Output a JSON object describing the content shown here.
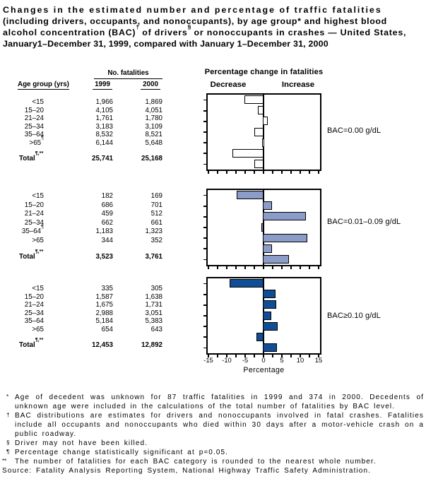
{
  "title": {
    "line1": "Changes in the estimated number and percentage of traffic fatalities",
    "line2": "(including drivers, occupants, and nonoccupants), by age group* and highest blood",
    "line3a": "alcohol concentration (BAC)",
    "line3_sup1": "†",
    "line3b": " of drivers",
    "line3_sup2": "§",
    "line3c": " or nonoccupants in crashes — United States,",
    "line4": "January1–December 31, 1999, compared with January 1–December 31, 2000"
  },
  "table_header": {
    "no_fatalities": "No. fatalities",
    "age_group": "Age group (yrs)",
    "year_1999": "1999",
    "year_2000": "2000"
  },
  "chart_header": {
    "title": "Percentage change in fatalities",
    "decrease_label": "Decrease",
    "increase_label": "Increase"
  },
  "axis": {
    "xlabel": "Percentage",
    "min": -15,
    "max": 15,
    "minor_step": 2.5,
    "major_ticks": [
      -15,
      -10,
      -5,
      0,
      5,
      10,
      15
    ],
    "tick_labels": [
      "-15",
      "-10",
      "-5",
      "0",
      "5",
      "10",
      "15"
    ]
  },
  "panels": [
    {
      "bac_label": "BAC=0.00 g/dL",
      "rows": [
        {
          "age": "<15",
          "sup": "",
          "f1999": "1,966",
          "f2000": "1,869"
        },
        {
          "age": "15–20",
          "sup": "",
          "f1999": "4,105",
          "f2000": "4,051"
        },
        {
          "age": "21–24",
          "sup": "",
          "f1999": "1,761",
          "f2000": "1,780"
        },
        {
          "age": "25–34",
          "sup": "",
          "f1999": "3,183",
          "f2000": "3,109"
        },
        {
          "age": "35–64",
          "sup": "",
          "f1999": "8,532",
          "f2000": "8,521"
        },
        {
          "age": ">65",
          "sup": "¶",
          "f1999": "6,144",
          "f2000": "5,648"
        }
      ],
      "total": {
        "label": "Total",
        "sup": "¶,**",
        "f1999": "25,741",
        "f2000": "25,168"
      }
    },
    {
      "bac_label": "BAC=0.01–0.09 g/dL",
      "rows": [
        {
          "age": "<15",
          "sup": "",
          "f1999": "182",
          "f2000": "169"
        },
        {
          "age": "15–20",
          "sup": "",
          "f1999": "686",
          "f2000": "701"
        },
        {
          "age": "21–24",
          "sup": "",
          "f1999": "459",
          "f2000": "512"
        },
        {
          "age": "25–34",
          "sup": "",
          "f1999": "662",
          "f2000": "661"
        },
        {
          "age": "35–64",
          "sup": "¶",
          "f1999": "1,183",
          "f2000": "1,323"
        },
        {
          "age": ">65",
          "sup": "",
          "f1999": "344",
          "f2000": "352"
        }
      ],
      "total": {
        "label": "Total",
        "sup": "¶,**",
        "f1999": "3,523",
        "f2000": "3,761"
      }
    },
    {
      "bac_label": "BAC≥0.10 g/dL",
      "rows": [
        {
          "age": "<15",
          "sup": "",
          "f1999": "335",
          "f2000": "305"
        },
        {
          "age": "15–20",
          "sup": "",
          "f1999": "1,587",
          "f2000": "1,638"
        },
        {
          "age": "21–24",
          "sup": "",
          "f1999": "1,675",
          "f2000": "1,731"
        },
        {
          "age": "25–34",
          "sup": "",
          "f1999": "2,988",
          "f2000": "3,051"
        },
        {
          "age": "35–64",
          "sup": "",
          "f1999": "5,184",
          "f2000": "5,383"
        },
        {
          "age": ">65",
          "sup": "",
          "f1999": "654",
          "f2000": "643"
        }
      ],
      "total": {
        "label": "Total",
        "sup": "¶,**",
        "f1999": "12,453",
        "f2000": "12,892"
      }
    }
  ],
  "chart_data": [
    {
      "type": "bar",
      "orientation": "horizontal",
      "title": "BAC=0.00 g/dL",
      "categories": [
        "<15",
        "15–20",
        "21–24",
        "25–34",
        "35–64",
        ">65",
        "Total"
      ],
      "values": [
        -4.9,
        -1.3,
        1.1,
        -2.3,
        -0.1,
        -8.1,
        -2.2
      ],
      "xlabel": "Percentage",
      "xlim": [
        -15,
        15
      ],
      "bar_color": "#ffffff"
    },
    {
      "type": "bar",
      "orientation": "horizontal",
      "title": "BAC=0.01–0.09 g/dL",
      "categories": [
        "<15",
        "15–20",
        "21–24",
        "25–34",
        "35–64",
        ">65",
        "Total"
      ],
      "values": [
        -7.1,
        2.2,
        11.5,
        -0.2,
        11.8,
        2.3,
        6.8
      ],
      "xlabel": "Percentage",
      "xlim": [
        -15,
        15
      ],
      "bar_color": "#8b9cc9"
    },
    {
      "type": "bar",
      "orientation": "horizontal",
      "title": "BAC≥0.10 g/dL",
      "categories": [
        "<15",
        "15–20",
        "21–24",
        "25–34",
        "35–64",
        ">65",
        "Total"
      ],
      "values": [
        -9.0,
        3.2,
        3.3,
        2.1,
        3.8,
        -1.7,
        3.5
      ],
      "xlabel": "Percentage",
      "xlim": [
        -15,
        15
      ],
      "bar_color": "#0f4e96"
    }
  ],
  "footnotes": [
    {
      "marker": "*",
      "text": "Age of decedent was unknown for 87 traffic fatalities in 1999 and 374 in 2000. Decedents of unknown age were included in the calculations of the total number of fatalities by BAC level."
    },
    {
      "marker": "†",
      "text": "BAC distributions are estimates for drivers and nonoccupants involved in fatal crashes. Fatalities include all occupants and nonoccupants who died within 30 days after a motor-vehicle crash on a public roadway."
    },
    {
      "marker": "§",
      "text": "Driver may not have been killed."
    },
    {
      "marker": "¶",
      "text": "Percentage change statistically significant at p=0.05."
    },
    {
      "marker": "**",
      "text": "The number of fatalities for each BAC category is rounded to the nearest whole number."
    }
  ],
  "source": "Source: Fatality Analysis Reporting System, National Highway Traffic Safety Administration."
}
